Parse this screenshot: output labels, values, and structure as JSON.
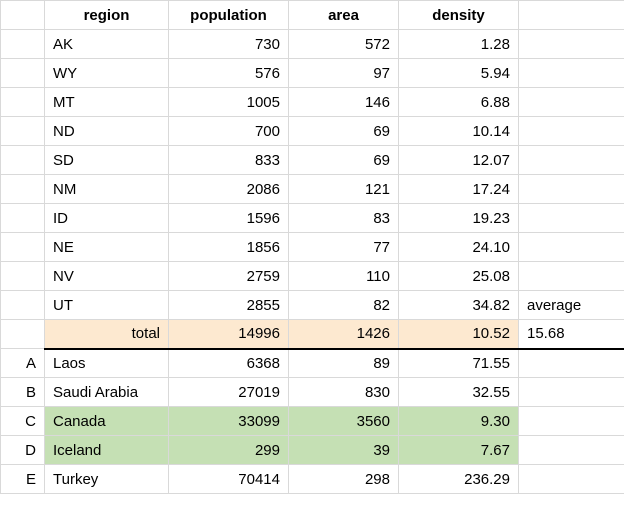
{
  "headers": {
    "region": "region",
    "population": "population",
    "area": "area",
    "density": "density"
  },
  "top_rows": [
    {
      "letter": "",
      "region": "AK",
      "population": "730",
      "area": "572",
      "density": "1.28"
    },
    {
      "letter": "",
      "region": "WY",
      "population": "576",
      "area": "97",
      "density": "5.94"
    },
    {
      "letter": "",
      "region": "MT",
      "population": "1005",
      "area": "146",
      "density": "6.88"
    },
    {
      "letter": "",
      "region": "ND",
      "population": "700",
      "area": "69",
      "density": "10.14"
    },
    {
      "letter": "",
      "region": "SD",
      "population": "833",
      "area": "69",
      "density": "12.07"
    },
    {
      "letter": "",
      "region": "NM",
      "population": "2086",
      "area": "121",
      "density": "17.24"
    },
    {
      "letter": "",
      "region": "ID",
      "population": "1596",
      "area": "83",
      "density": "19.23"
    },
    {
      "letter": "",
      "region": "NE",
      "population": "1856",
      "area": "77",
      "density": "24.10"
    },
    {
      "letter": "",
      "region": "NV",
      "population": "2759",
      "area": "110",
      "density": "25.08"
    },
    {
      "letter": "",
      "region": "UT",
      "population": "2855",
      "area": "82",
      "density": "34.82",
      "extra": "average"
    }
  ],
  "total": {
    "label": "total",
    "population": "14996",
    "area": "1426",
    "density": "10.52",
    "extra": "15.68"
  },
  "bottom_rows": [
    {
      "letter": "A",
      "region": "Laos",
      "population": "6368",
      "area": "89",
      "density": "71.55",
      "highlight": false
    },
    {
      "letter": "B",
      "region": "Saudi Arabia",
      "population": "27019",
      "area": "830",
      "density": "32.55",
      "highlight": false
    },
    {
      "letter": "C",
      "region": "Canada",
      "population": "33099",
      "area": "3560",
      "density": "9.30",
      "highlight": true
    },
    {
      "letter": "D",
      "region": "Iceland",
      "population": "299",
      "area": "39",
      "density": "7.67",
      "highlight": true
    },
    {
      "letter": "E",
      "region": "Turkey",
      "population": "70414",
      "area": "298",
      "density": "236.29",
      "highlight": false
    }
  ],
  "colors": {
    "grid": "#d9d9d9",
    "total_bg": "#fde9d0",
    "highlight_bg": "#c5e0b4",
    "border_heavy": "#000000"
  }
}
